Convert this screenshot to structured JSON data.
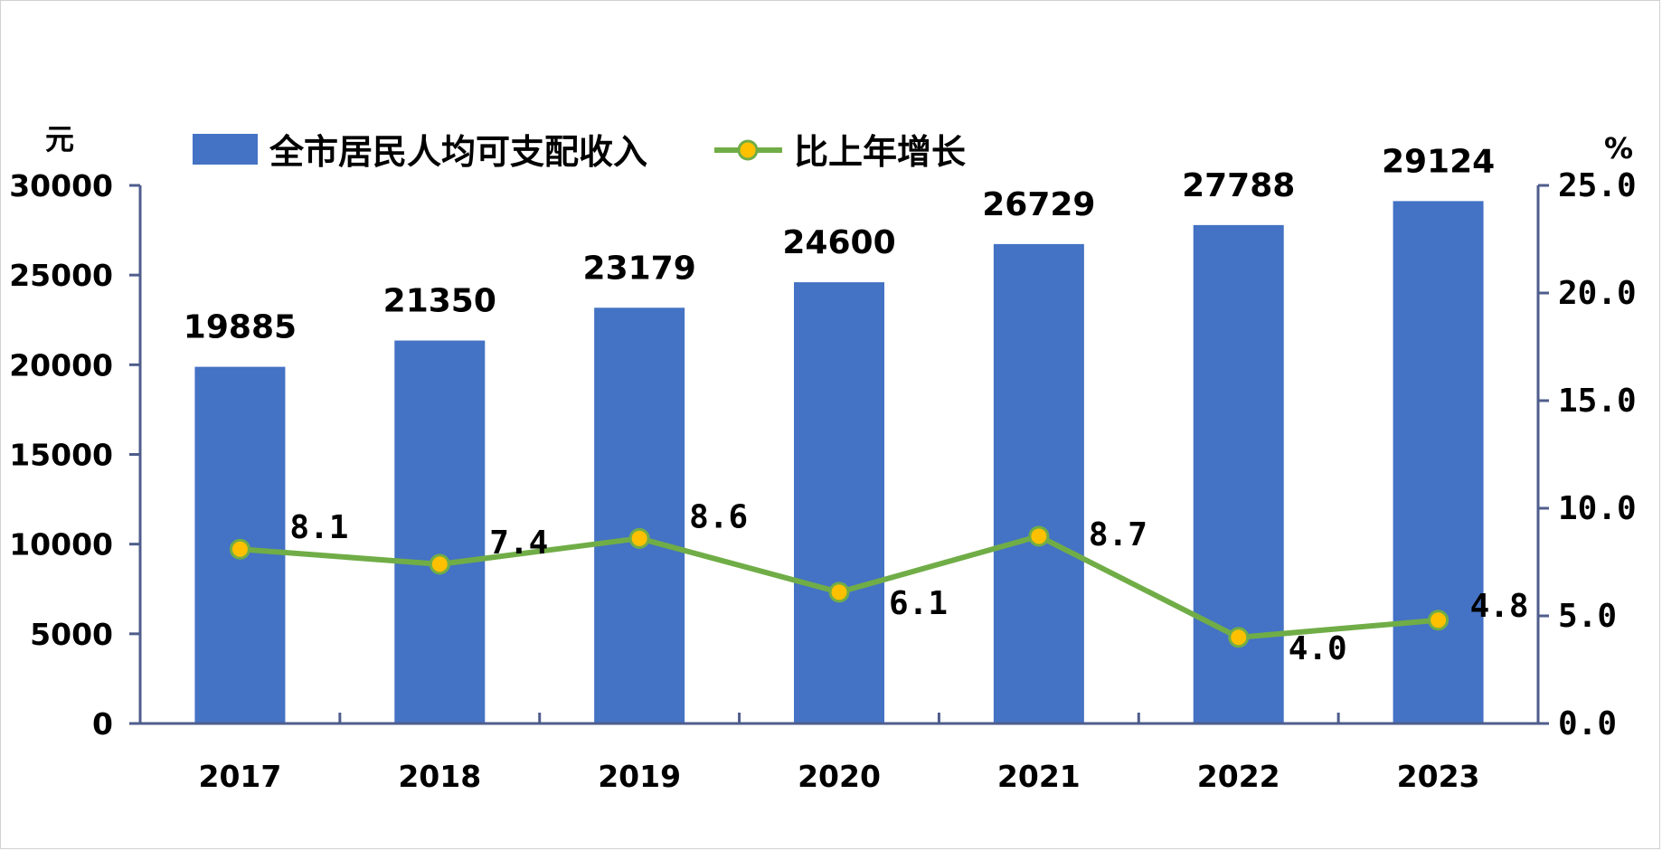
{
  "chart_data": {
    "type": "bar",
    "categories": [
      "2017",
      "2018",
      "2019",
      "2020",
      "2021",
      "2022",
      "2023"
    ],
    "series": [
      {
        "name": "全市居民人均可支配收入",
        "type": "bar",
        "axis": "left",
        "color": "#4472C4",
        "values": [
          19885,
          21350,
          23179,
          24600,
          26729,
          27788,
          29124
        ],
        "labels": [
          "19885",
          "21350",
          "23179",
          "24600",
          "26729",
          "27788",
          "29124"
        ]
      },
      {
        "name": "比上年增长",
        "type": "line",
        "axis": "right",
        "color": "#70AD47",
        "marker_color": "#FFC000",
        "values": [
          8.1,
          7.4,
          8.6,
          6.1,
          8.7,
          4.0,
          4.8
        ],
        "labels": [
          "8.1",
          "7.4",
          "8.6",
          "6.1",
          "8.7",
          "4.0",
          "4.8"
        ]
      }
    ],
    "y_left": {
      "unit": "元",
      "range": [
        0,
        30000
      ],
      "ticks": [
        "0",
        "5000",
        "10000",
        "15000",
        "20000",
        "25000",
        "30000"
      ]
    },
    "y_right": {
      "unit": "%",
      "range": [
        0,
        25
      ],
      "ticks": [
        "0.0",
        "5.0",
        "10.0",
        "15.0",
        "20.0",
        "25.0"
      ]
    },
    "axis_color": "#4F5D8C",
    "grid": false,
    "legend_position": "top"
  }
}
